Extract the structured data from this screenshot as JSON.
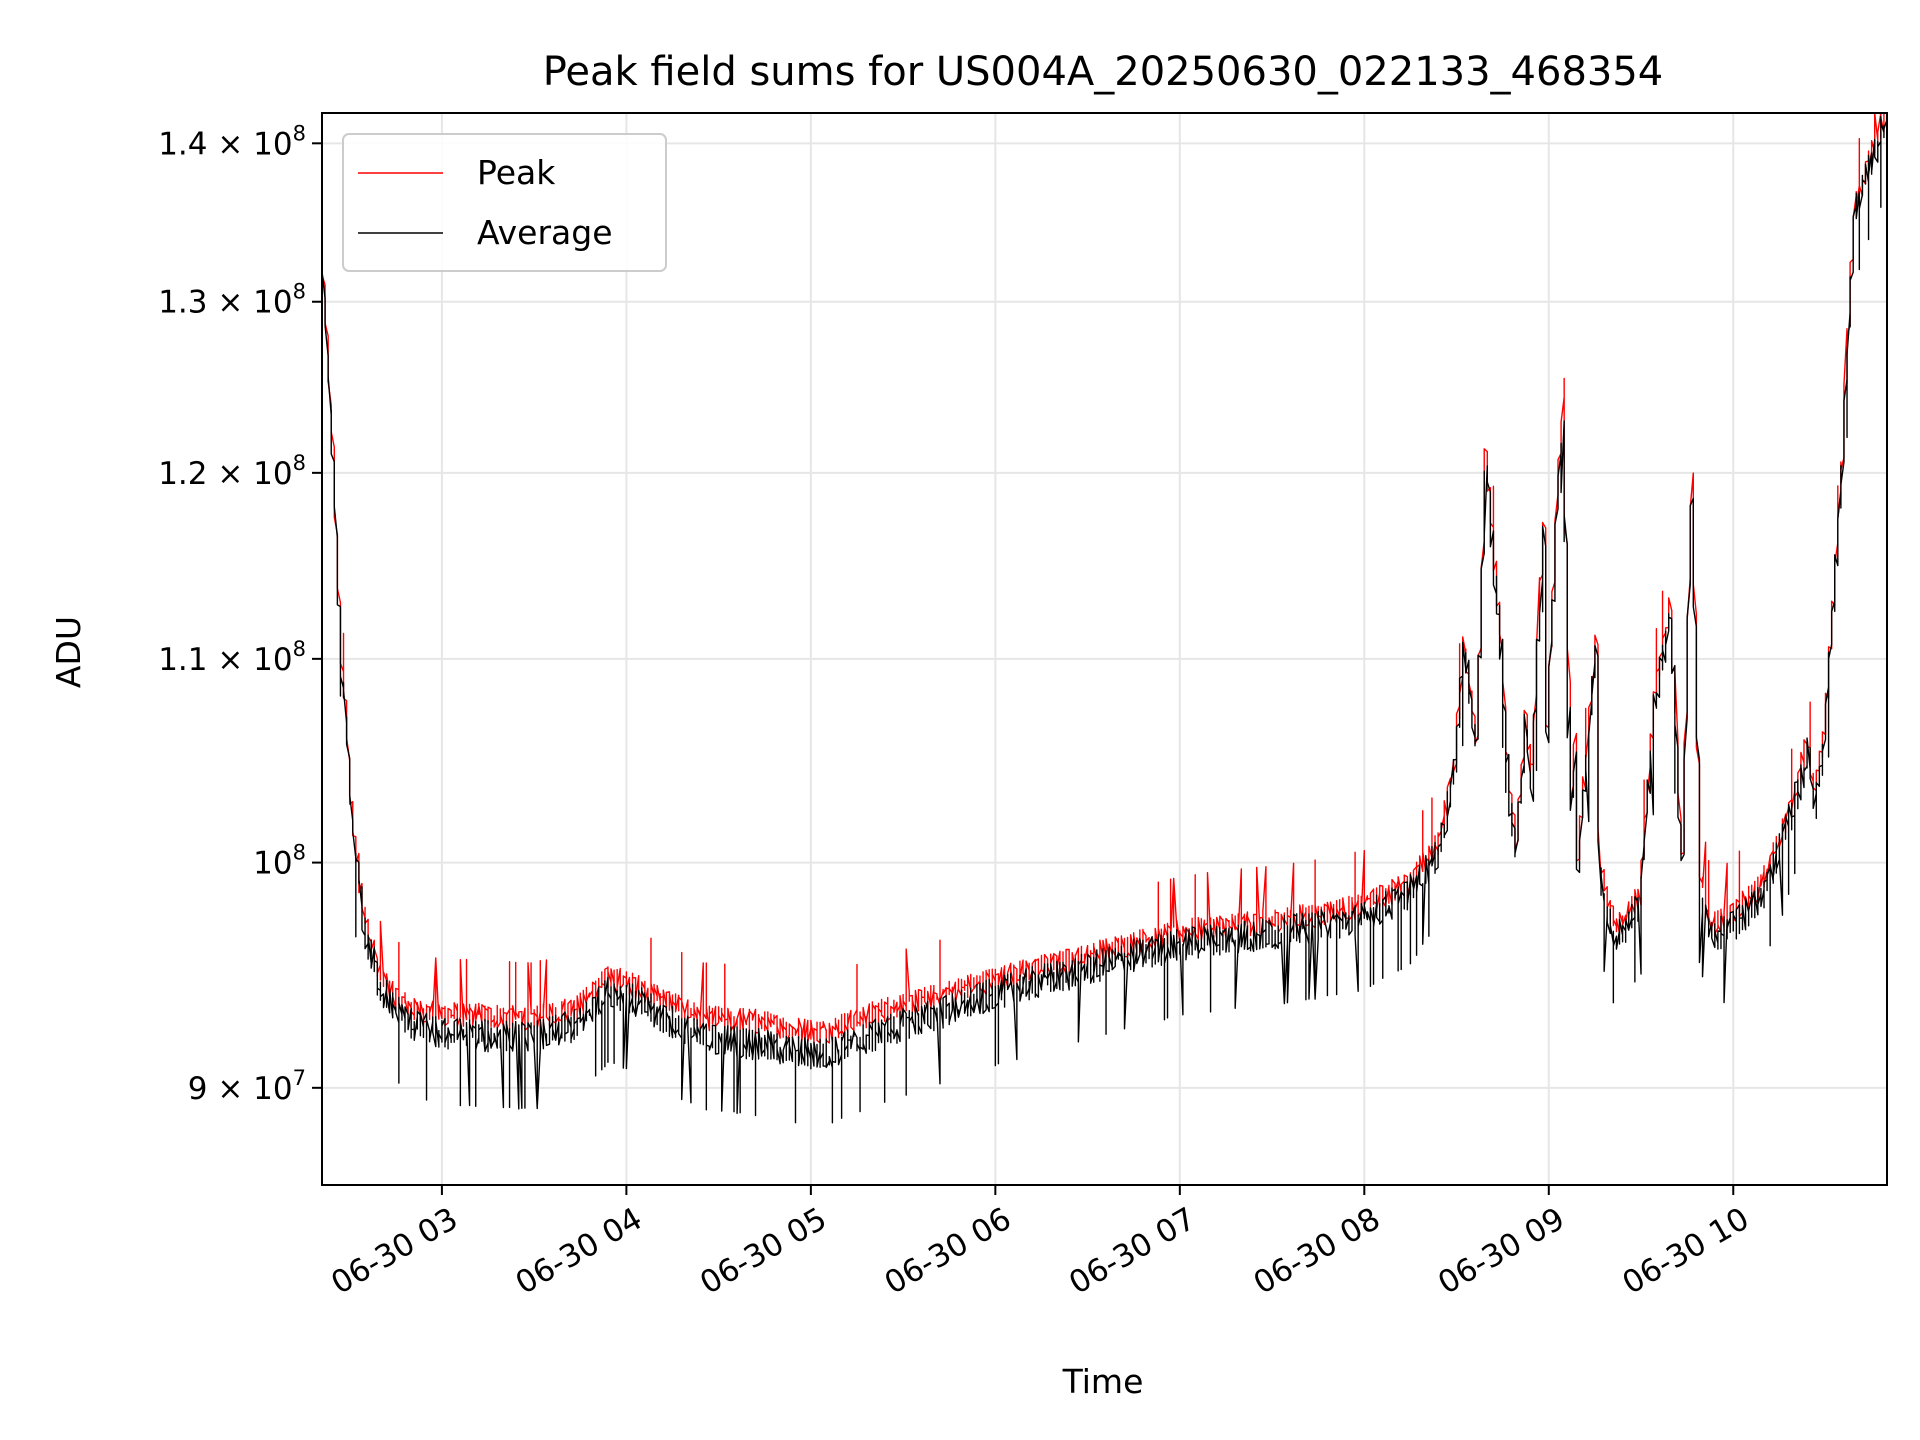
{
  "chart_data": {
    "type": "line",
    "title": "Peak field sums for US004A_20250630_022133_468354",
    "xlabel": "Time",
    "ylabel": "ADU",
    "y_scale": "log",
    "grid": true,
    "legend_position": "upper left",
    "xlim": [
      "2025-06-30 02:21",
      "2025-06-30 10:50"
    ],
    "ylim": [
      86000000,
      142000000
    ],
    "x_ticks": [
      {
        "value": "2025-06-30 03:00",
        "label": "06-30 03"
      },
      {
        "value": "2025-06-30 04:00",
        "label": "06-30 04"
      },
      {
        "value": "2025-06-30 05:00",
        "label": "06-30 05"
      },
      {
        "value": "2025-06-30 06:00",
        "label": "06-30 06"
      },
      {
        "value": "2025-06-30 07:00",
        "label": "06-30 07"
      },
      {
        "value": "2025-06-30 08:00",
        "label": "06-30 08"
      },
      {
        "value": "2025-06-30 09:00",
        "label": "06-30 09"
      },
      {
        "value": "2025-06-30 10:00",
        "label": "06-30 10"
      }
    ],
    "y_ticks": [
      {
        "value": 90000000,
        "label": "9 × 10",
        "exp": "7"
      },
      {
        "value": 100000000,
        "label": "10",
        "exp": "8"
      },
      {
        "value": 110000000,
        "label": "1.1 × 10",
        "exp": "8"
      },
      {
        "value": 120000000,
        "label": "1.2 × 10",
        "exp": "8"
      },
      {
        "value": 130000000,
        "label": "1.3 × 10",
        "exp": "8"
      },
      {
        "value": 140000000,
        "label": "1.4 × 10",
        "exp": "8"
      }
    ],
    "x": [
      "2025-06-30 02:21",
      "2025-06-30 02:24",
      "2025-06-30 02:28",
      "2025-06-30 02:32",
      "2025-06-30 02:36",
      "2025-06-30 02:40",
      "2025-06-30 02:45",
      "2025-06-30 02:52",
      "2025-06-30 03:00",
      "2025-06-30 03:15",
      "2025-06-30 03:30",
      "2025-06-30 03:45",
      "2025-06-30 03:55",
      "2025-06-30 04:05",
      "2025-06-30 04:15",
      "2025-06-30 04:25",
      "2025-06-30 04:40",
      "2025-06-30 04:55",
      "2025-06-30 05:05",
      "2025-06-30 05:15",
      "2025-06-30 05:25",
      "2025-06-30 05:35",
      "2025-06-30 05:45",
      "2025-06-30 06:00",
      "2025-06-30 06:15",
      "2025-06-30 06:30",
      "2025-06-30 06:45",
      "2025-06-30 07:00",
      "2025-06-30 07:15",
      "2025-06-30 07:30",
      "2025-06-30 07:45",
      "2025-06-30 08:00",
      "2025-06-30 08:15",
      "2025-06-30 08:25",
      "2025-06-30 08:30",
      "2025-06-30 08:33",
      "2025-06-30 08:37",
      "2025-06-30 08:40",
      "2025-06-30 08:45",
      "2025-06-30 08:48",
      "2025-06-30 08:50",
      "2025-06-30 08:53",
      "2025-06-30 08:55",
      "2025-06-30 08:59",
      "2025-06-30 09:00",
      "2025-06-30 09:03",
      "2025-06-30 09:05",
      "2025-06-30 09:08",
      "2025-06-30 09:09",
      "2025-06-30 09:10",
      "2025-06-30 09:12",
      "2025-06-30 09:16",
      "2025-06-30 09:17",
      "2025-06-30 09:20",
      "2025-06-30 09:22",
      "2025-06-30 09:25",
      "2025-06-30 09:30",
      "2025-06-30 09:35",
      "2025-06-30 09:40",
      "2025-06-30 09:44",
      "2025-06-30 09:47",
      "2025-06-30 09:50",
      "2025-06-30 09:53",
      "2025-06-30 09:55",
      "2025-06-30 10:00",
      "2025-06-30 10:10",
      "2025-06-30 10:20",
      "2025-06-30 10:25",
      "2025-06-30 10:27",
      "2025-06-30 10:30",
      "2025-06-30 10:35",
      "2025-06-30 10:40",
      "2025-06-30 10:45",
      "2025-06-30 10:50"
    ],
    "series": [
      {
        "name": "Peak",
        "color": "#ff0000",
        "values": [
          134000000,
          125000000,
          110000000,
          101000000,
          97000000,
          95000000,
          94000000,
          93300000,
          93200000,
          93100000,
          93000000,
          93500000,
          94800000,
          94300000,
          93700000,
          93000000,
          92900000,
          92500000,
          92400000,
          92900000,
          93400000,
          93700000,
          94100000,
          94700000,
          95200000,
          95700000,
          96300000,
          96800000,
          97100000,
          97300000,
          97600000,
          98000000,
          99000000,
          101000000,
          105000000,
          111000000,
          106000000,
          121000000,
          111000000,
          103000000,
          101000000,
          107000000,
          104000000,
          118000000,
          106000000,
          118000000,
          124000000,
          103000000,
          106000000,
          100000000,
          104000000,
          111000000,
          100000000,
          98000000,
          97200000,
          97500000,
          98500000,
          108000000,
          113000000,
          100000000,
          120000000,
          99000000,
          97300000,
          97200000,
          97600000,
          99000000,
          103000000,
          106000000,
          103000000,
          106000000,
          118000000,
          136000000,
          139000000,
          142000000
        ]
      },
      {
        "name": "Average",
        "color": "#000000",
        "values": [
          133500000,
          124500000,
          109500000,
          100500000,
          96500000,
          94500000,
          93400000,
          92600000,
          92300000,
          92200000,
          92100000,
          92700000,
          94200000,
          93600000,
          92800000,
          92100000,
          91900000,
          91500000,
          91400000,
          91900000,
          92400000,
          92900000,
          93300000,
          94000000,
          94600000,
          95100000,
          95700000,
          96200000,
          96500000,
          96700000,
          97000000,
          97400000,
          98500000,
          100500000,
          104500000,
          110500000,
          105500000,
          120500000,
          110500000,
          102500000,
          100500000,
          106500000,
          103500000,
          117500000,
          105500000,
          117500000,
          123500000,
          102500000,
          105500000,
          99500000,
          103500000,
          110500000,
          99500000,
          97400000,
          96600000,
          96900000,
          98000000,
          107500000,
          112500000,
          99500000,
          119500000,
          98500000,
          96700000,
          96600000,
          97000000,
          98400000,
          102500000,
          105500000,
          102500000,
          105500000,
          117500000,
          135500000,
          138500000,
          141500000
        ]
      }
    ]
  }
}
